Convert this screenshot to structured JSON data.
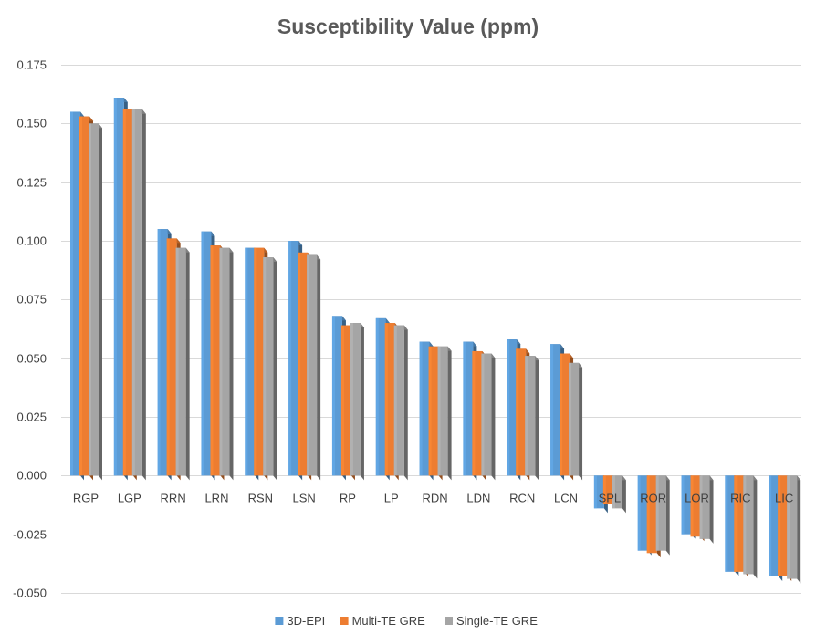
{
  "chart_data": {
    "type": "bar",
    "title": "Susceptibility Value (ppm)",
    "xlabel": "",
    "ylabel": "",
    "ylim": [
      -0.05,
      0.175
    ],
    "yticks": [
      0.175,
      0.15,
      0.125,
      0.1,
      0.075,
      0.05,
      0.025,
      0.0,
      -0.025,
      -0.05
    ],
    "ytick_labels": [
      "0.175",
      "0.150",
      "0.125",
      "0.100",
      "0.075",
      "0.050",
      "0.025",
      "0.000",
      "-0.025",
      "-0.050"
    ],
    "grid": true,
    "legend_position": "bottom",
    "categories": [
      "RGP",
      "LGP",
      "RRN",
      "LRN",
      "RSN",
      "LSN",
      "RP",
      "LP",
      "RDN",
      "LDN",
      "RCN",
      "LCN",
      "SPL",
      "ROR",
      "LOR",
      "RIC",
      "LIC"
    ],
    "series": [
      {
        "name": "3D-EPI",
        "color": "#5b9bd5",
        "values": [
          0.155,
          0.161,
          0.105,
          0.104,
          0.097,
          0.1,
          0.068,
          0.067,
          0.057,
          0.057,
          0.058,
          0.056,
          -0.014,
          -0.032,
          -0.025,
          -0.041,
          -0.043
        ]
      },
      {
        "name": "Multi-TE GRE",
        "color": "#ed7d31",
        "values": [
          0.153,
          0.156,
          0.101,
          0.098,
          0.097,
          0.095,
          0.064,
          0.065,
          0.055,
          0.053,
          0.054,
          0.052,
          -0.012,
          -0.033,
          -0.026,
          -0.041,
          -0.043
        ]
      },
      {
        "name": "Single-TE GRE",
        "color": "#a5a5a5",
        "values": [
          0.15,
          0.156,
          0.097,
          0.097,
          0.093,
          0.094,
          0.065,
          0.064,
          0.055,
          0.052,
          0.051,
          0.048,
          -0.014,
          -0.032,
          -0.027,
          -0.042,
          -0.044
        ]
      }
    ]
  }
}
